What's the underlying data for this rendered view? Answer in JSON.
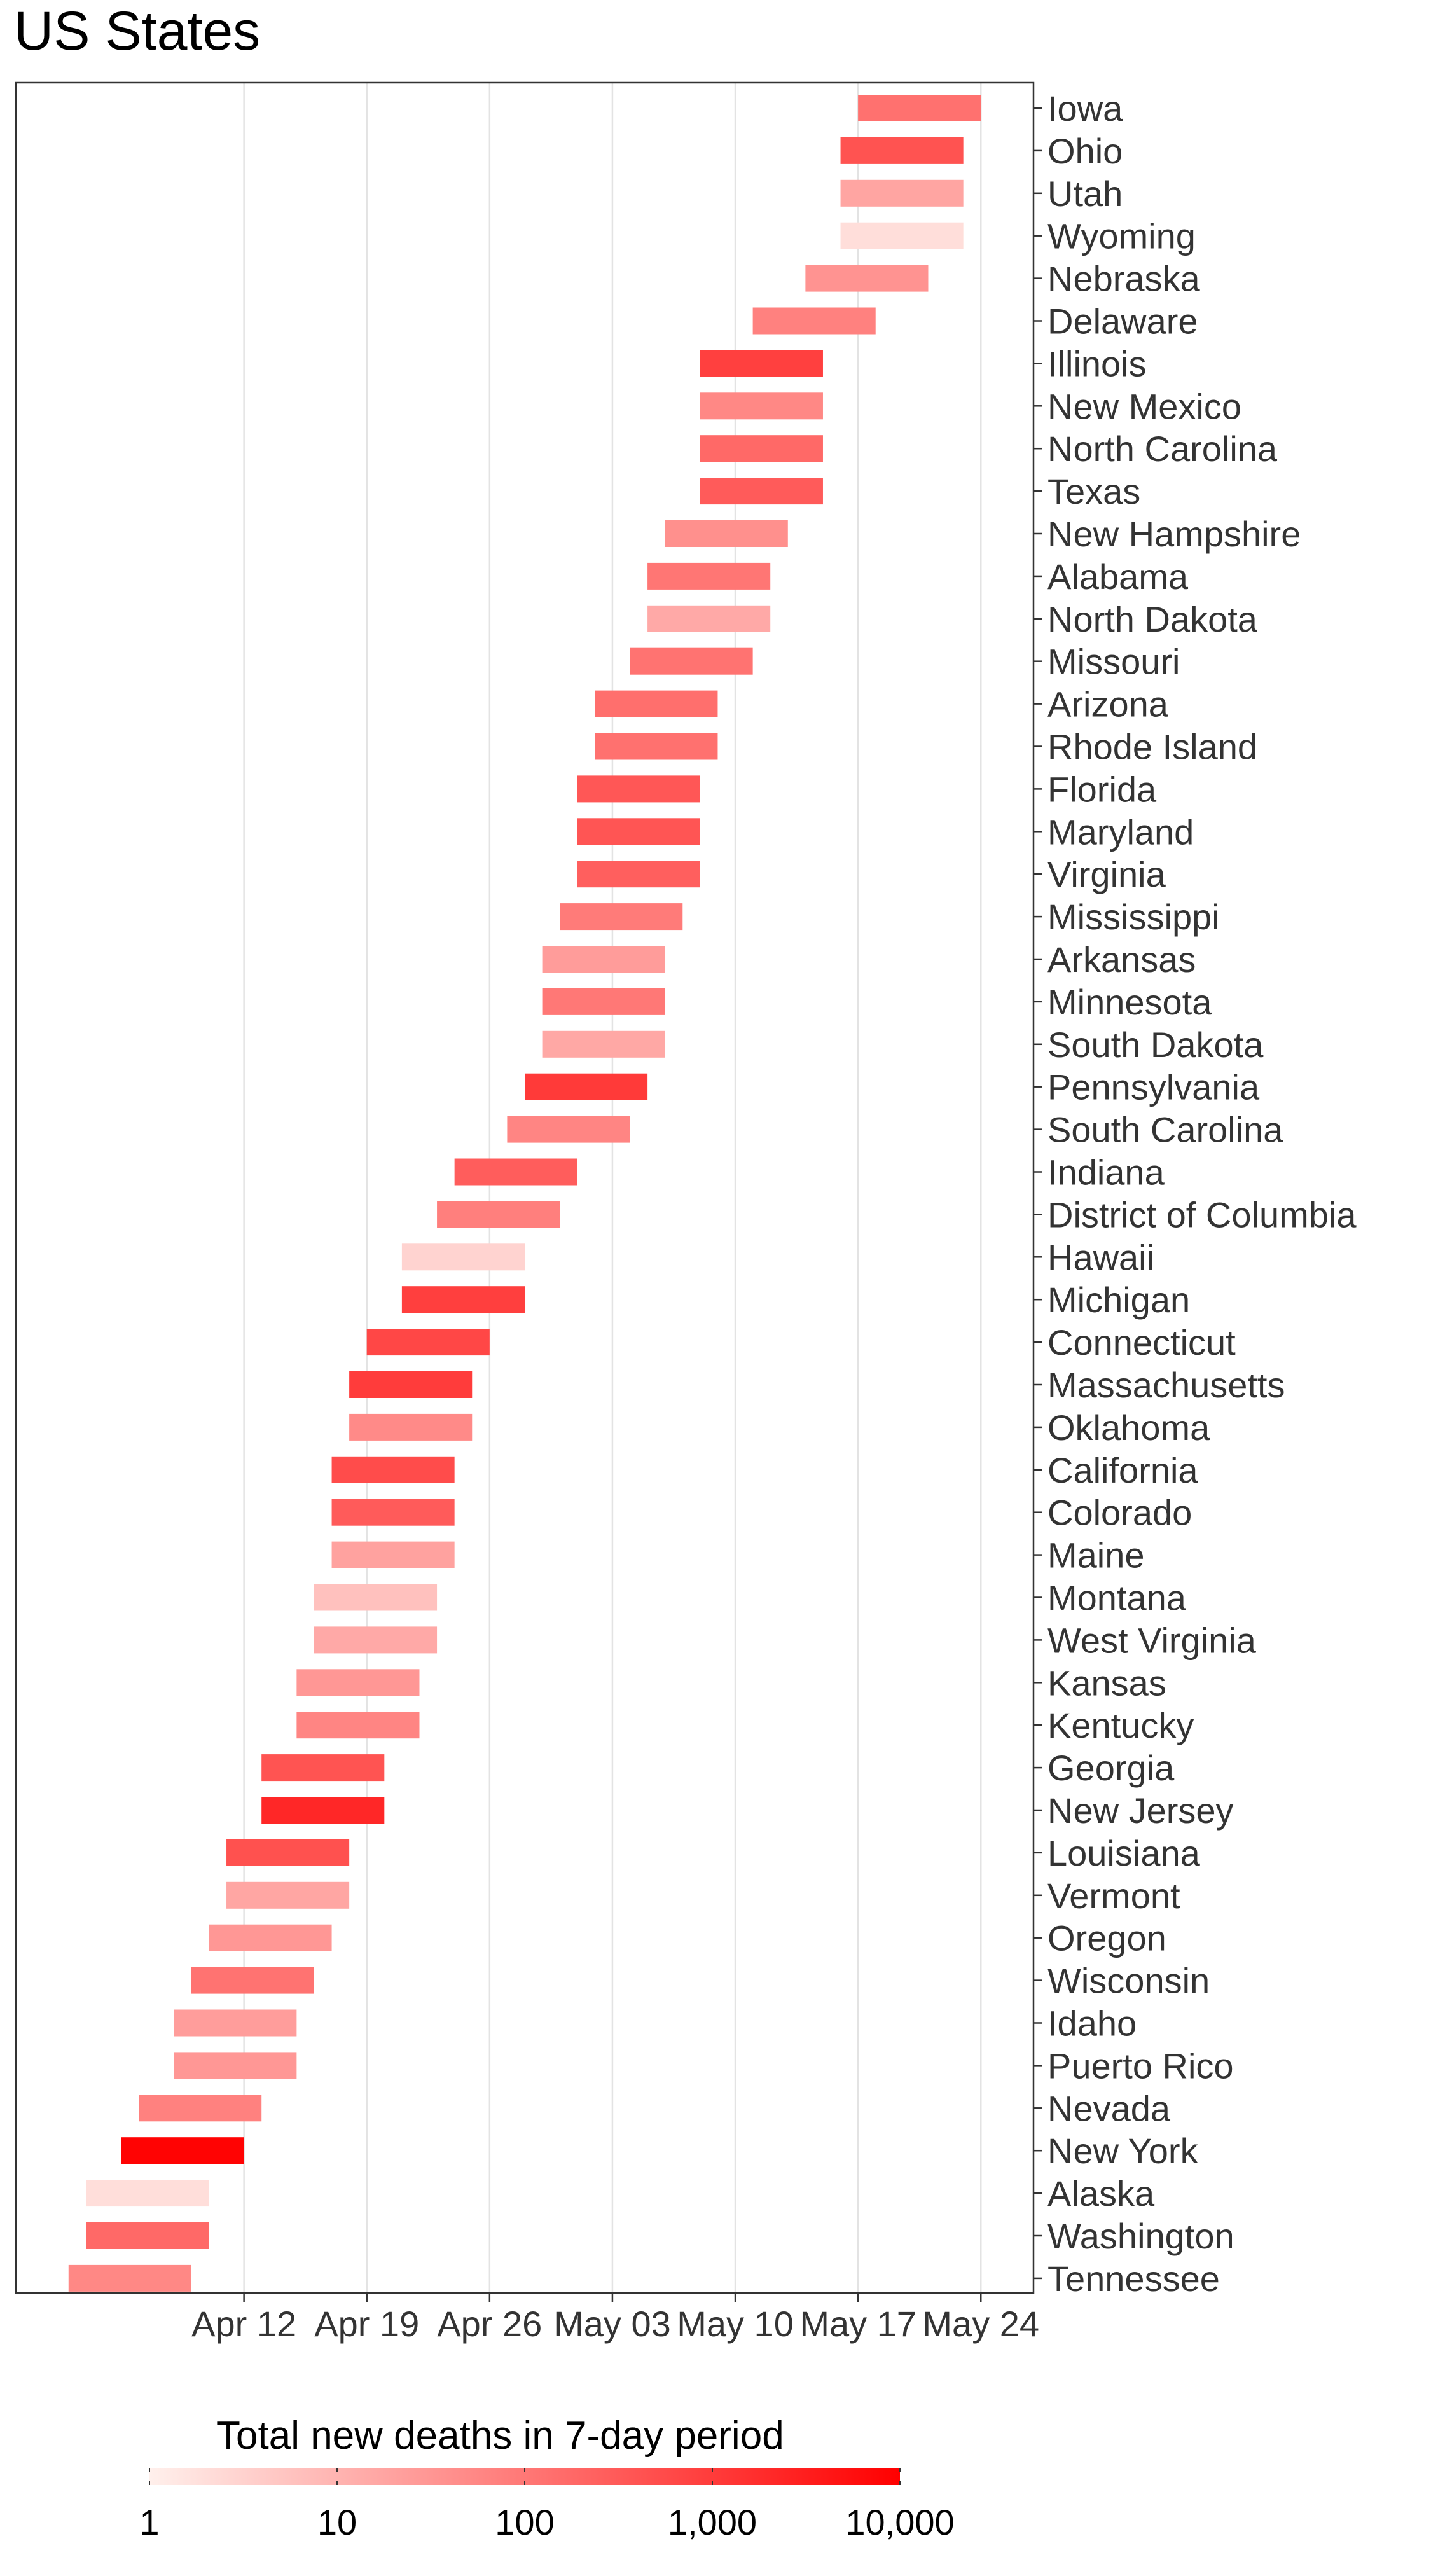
{
  "page": {
    "title": "US States"
  },
  "chart_data": {
    "type": "bar",
    "subtype": "horizontal-range-timeline",
    "title": "US States",
    "xlabel": "",
    "ylabel": "",
    "x_axis": {
      "scale": "date",
      "ticks": [
        "Apr 12",
        "Apr 19",
        "Apr 26",
        "May 03",
        "May 10",
        "May 17",
        "May 24"
      ],
      "range": [
        "2020-03-30",
        "2020-05-27"
      ]
    },
    "grid": "vertical major gridlines",
    "bars": [
      {
        "state": "Iowa",
        "start": "2020-05-17",
        "end": "2020-05-24",
        "deaths": 130
      },
      {
        "state": "Ohio",
        "start": "2020-05-16",
        "end": "2020-05-23",
        "deaths": 420
      },
      {
        "state": "Utah",
        "start": "2020-05-16",
        "end": "2020-05-23",
        "deaths": 18
      },
      {
        "state": "Wyoming",
        "start": "2020-05-16",
        "end": "2020-05-23",
        "deaths": 2
      },
      {
        "state": "Nebraska",
        "start": "2020-05-14",
        "end": "2020-05-21",
        "deaths": 35
      },
      {
        "state": "Delaware",
        "start": "2020-05-11",
        "end": "2020-05-18",
        "deaths": 70
      },
      {
        "state": "Illinois",
        "start": "2020-05-08",
        "end": "2020-05-15",
        "deaths": 850
      },
      {
        "state": "New Mexico",
        "start": "2020-05-08",
        "end": "2020-05-15",
        "deaths": 55
      },
      {
        "state": "North Carolina",
        "start": "2020-05-08",
        "end": "2020-05-15",
        "deaths": 180
      },
      {
        "state": "Texas",
        "start": "2020-05-08",
        "end": "2020-05-15",
        "deaths": 300
      },
      {
        "state": "New Hampshire",
        "start": "2020-05-06",
        "end": "2020-05-13",
        "deaths": 40
      },
      {
        "state": "Alabama",
        "start": "2020-05-05",
        "end": "2020-05-12",
        "deaths": 110
      },
      {
        "state": "North Dakota",
        "start": "2020-05-05",
        "end": "2020-05-12",
        "deaths": 15
      },
      {
        "state": "Missouri",
        "start": "2020-05-04",
        "end": "2020-05-11",
        "deaths": 120
      },
      {
        "state": "Arizona",
        "start": "2020-05-02",
        "end": "2020-05-09",
        "deaths": 140
      },
      {
        "state": "Rhode Island",
        "start": "2020-05-02",
        "end": "2020-05-09",
        "deaths": 130
      },
      {
        "state": "Florida",
        "start": "2020-05-01",
        "end": "2020-05-08",
        "deaths": 350
      },
      {
        "state": "Maryland",
        "start": "2020-05-01",
        "end": "2020-05-08",
        "deaths": 380
      },
      {
        "state": "Virginia",
        "start": "2020-05-01",
        "end": "2020-05-08",
        "deaths": 260
      },
      {
        "state": "Mississippi",
        "start": "2020-04-30",
        "end": "2020-05-07",
        "deaths": 90
      },
      {
        "state": "Arkansas",
        "start": "2020-04-29",
        "end": "2020-05-06",
        "deaths": 25
      },
      {
        "state": "Minnesota",
        "start": "2020-04-29",
        "end": "2020-05-06",
        "deaths": 100
      },
      {
        "state": "South Dakota",
        "start": "2020-04-29",
        "end": "2020-05-06",
        "deaths": 16
      },
      {
        "state": "Pennsylvania",
        "start": "2020-04-28",
        "end": "2020-05-05",
        "deaths": 1100
      },
      {
        "state": "South Carolina",
        "start": "2020-04-27",
        "end": "2020-05-04",
        "deaths": 60
      },
      {
        "state": "Indiana",
        "start": "2020-04-24",
        "end": "2020-05-01",
        "deaths": 280
      },
      {
        "state": "District of Columbia",
        "start": "2020-04-23",
        "end": "2020-04-30",
        "deaths": 75
      },
      {
        "state": "Hawaii",
        "start": "2020-04-21",
        "end": "2020-04-28",
        "deaths": 3
      },
      {
        "state": "Michigan",
        "start": "2020-04-21",
        "end": "2020-04-28",
        "deaths": 900
      },
      {
        "state": "Connecticut",
        "start": "2020-04-19",
        "end": "2020-04-26",
        "deaths": 650
      },
      {
        "state": "Massachusetts",
        "start": "2020-04-18",
        "end": "2020-04-25",
        "deaths": 1000
      },
      {
        "state": "Oklahoma",
        "start": "2020-04-18",
        "end": "2020-04-25",
        "deaths": 50
      },
      {
        "state": "California",
        "start": "2020-04-17",
        "end": "2020-04-24",
        "deaths": 540
      },
      {
        "state": "Colorado",
        "start": "2020-04-17",
        "end": "2020-04-24",
        "deaths": 300
      },
      {
        "state": "Maine",
        "start": "2020-04-17",
        "end": "2020-04-24",
        "deaths": 20
      },
      {
        "state": "Montana",
        "start": "2020-04-16",
        "end": "2020-04-23",
        "deaths": 6
      },
      {
        "state": "West Virginia",
        "start": "2020-04-16",
        "end": "2020-04-23",
        "deaths": 15
      },
      {
        "state": "Kansas",
        "start": "2020-04-15",
        "end": "2020-04-22",
        "deaths": 30
      },
      {
        "state": "Kentucky",
        "start": "2020-04-15",
        "end": "2020-04-22",
        "deaths": 60
      },
      {
        "state": "Georgia",
        "start": "2020-04-13",
        "end": "2020-04-20",
        "deaths": 400
      },
      {
        "state": "New Jersey",
        "start": "2020-04-13",
        "end": "2020-04-20",
        "deaths": 2200
      },
      {
        "state": "Louisiana",
        "start": "2020-04-11",
        "end": "2020-04-18",
        "deaths": 450
      },
      {
        "state": "Vermont",
        "start": "2020-04-11",
        "end": "2020-04-18",
        "deaths": 17
      },
      {
        "state": "Oregon",
        "start": "2020-04-10",
        "end": "2020-04-17",
        "deaths": 30
      },
      {
        "state": "Wisconsin",
        "start": "2020-04-09",
        "end": "2020-04-16",
        "deaths": 120
      },
      {
        "state": "Idaho",
        "start": "2020-04-08",
        "end": "2020-04-15",
        "deaths": 24
      },
      {
        "state": "Puerto Rico",
        "start": "2020-04-08",
        "end": "2020-04-15",
        "deaths": 30
      },
      {
        "state": "Nevada",
        "start": "2020-04-06",
        "end": "2020-04-13",
        "deaths": 70
      },
      {
        "state": "New York",
        "start": "2020-04-05",
        "end": "2020-04-12",
        "deaths": 9000
      },
      {
        "state": "Alaska",
        "start": "2020-04-03",
        "end": "2020-04-10",
        "deaths": 2
      },
      {
        "state": "Washington",
        "start": "2020-04-03",
        "end": "2020-04-10",
        "deaths": 180
      },
      {
        "state": "Tennessee",
        "start": "2020-04-02",
        "end": "2020-04-09",
        "deaths": 55
      }
    ],
    "legend": {
      "title": "Total new deaths in 7-day period",
      "placement": "bottom",
      "scale": "log10",
      "range": [
        1,
        10000
      ],
      "ticks": [
        {
          "value": 1,
          "label": "1"
        },
        {
          "value": 10,
          "label": "10"
        },
        {
          "value": 100,
          "label": "100"
        },
        {
          "value": 1000,
          "label": "1,000"
        },
        {
          "value": 10000,
          "label": "10,000"
        }
      ],
      "color_low": "#fff0ec",
      "color_high": "#ff0000"
    }
  }
}
